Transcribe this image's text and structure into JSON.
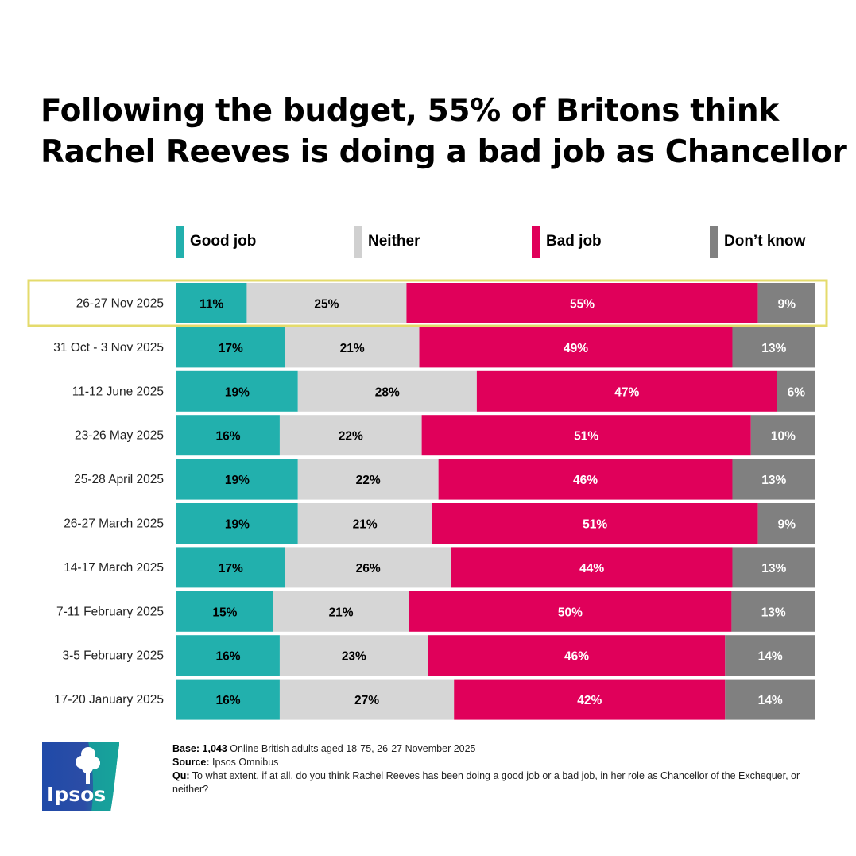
{
  "title_lines": [
    "Following the budget, 55% of Britons think",
    "Rachel Reeves is doing a bad job as Chancellor"
  ],
  "colors": {
    "good": "#22b0ad",
    "neither": "#d6d6d6",
    "bad": "#e0005a",
    "dontknow": "#808080",
    "highlight": "#e4db6c"
  },
  "chart_data": {
    "type": "bar",
    "orientation": "horizontal",
    "stacked": true,
    "normalized": "percent",
    "title": "Following the budget, 55% of Britons think Rachel Reeves is doing a bad job as Chancellor",
    "legend_position": "top",
    "categories": [
      "26-27 Nov 2025",
      "31 Oct - 3 Nov 2025",
      "11-12 June 2025",
      "23-26 May 2025",
      "25-28 April 2025",
      "26-27 March 2025",
      "14-17 March 2025",
      "7-11 February 2025",
      "3-5 February 2025",
      "17-20 January 2025"
    ],
    "series": [
      {
        "name": "Good job",
        "color": "#22b0ad",
        "values": [
          11,
          17,
          19,
          16,
          19,
          19,
          17,
          15,
          16,
          16
        ]
      },
      {
        "name": "Neither",
        "color": "#d6d6d6",
        "values": [
          25,
          21,
          28,
          22,
          22,
          21,
          26,
          21,
          23,
          27
        ]
      },
      {
        "name": "Bad job",
        "color": "#e0005a",
        "values": [
          55,
          49,
          47,
          51,
          46,
          51,
          44,
          50,
          46,
          42
        ]
      },
      {
        "name": "Don’t know",
        "color": "#808080",
        "values": [
          9,
          13,
          6,
          10,
          13,
          9,
          13,
          13,
          14,
          14
        ]
      }
    ],
    "highlighted_category": "26-27 Nov 2025"
  },
  "footer": {
    "base_label": "Base:",
    "base_bold": "1,043",
    "base_text": "Online British adults aged 18-75, 26-27 November 2025",
    "source_label": "Source:",
    "source_text": "Ipsos Omnibus",
    "question_label": "Qu:",
    "question_text": "To what extent, if at all, do you think Rachel Reeves has been doing a good job or a bad job, in her role as Chancellor of the Exchequer, or neither?"
  },
  "logo": {
    "text": "Ipsos"
  }
}
